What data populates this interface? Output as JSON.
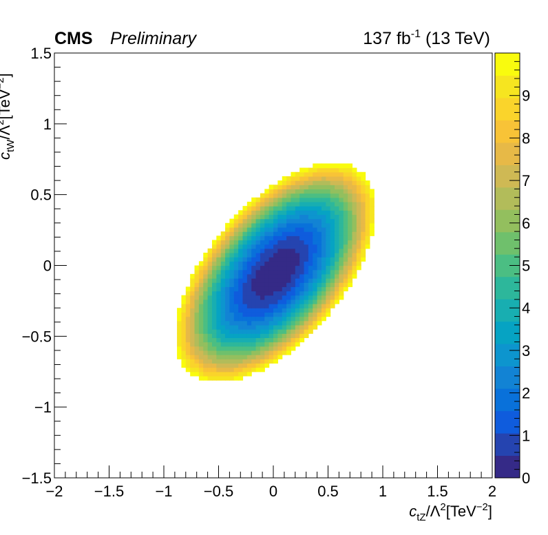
{
  "header": {
    "experiment": "CMS",
    "status": "Preliminary",
    "lumi": "137 fb",
    "lumi_exp": "-1",
    "energy": " (13 TeV)"
  },
  "chart_data": {
    "type": "heatmap",
    "xlabel": {
      "sym": "c",
      "sub": "tZ",
      "mid": "/Λ",
      "sup": "2",
      "unit": "[TeV",
      "unit_sup": "−2",
      "close": "]"
    },
    "ylabel": {
      "sym": "c",
      "sub": "tW",
      "mid": "/Λ",
      "sup": "2",
      "unit": "[TeV",
      "unit_sup": "−2",
      "close": "]"
    },
    "xlim": [
      -2,
      2
    ],
    "ylim": [
      -1.5,
      1.5
    ],
    "x_ticks": [
      -2,
      -1.5,
      -1,
      -0.5,
      0,
      0.5,
      1,
      1.5,
      2
    ],
    "y_ticks": [
      -1.5,
      -1,
      -0.5,
      0,
      0.5,
      1,
      1.5
    ],
    "tick_labels_x": [
      "−2",
      "−1.5",
      "−1",
      "−0.5",
      "0",
      "0.5",
      "1",
      "1.5",
      "2"
    ],
    "tick_labels_y": [
      "−1.5",
      "−1",
      "−0.5",
      "0",
      "0.5",
      "1",
      "1.5"
    ],
    "z_range": [
      0,
      10
    ],
    "z_ticks": [
      0,
      1,
      2,
      3,
      4,
      5,
      6,
      7,
      8,
      9
    ],
    "z_tick_labels": [
      "0",
      "1",
      "2",
      "3",
      "4",
      "5",
      "6",
      "7",
      "8",
      "9"
    ],
    "colormap": [
      "#352a87",
      "#2544b0",
      "#0f5cdd",
      "#0971da",
      "#1283d4",
      "#0d95ce",
      "#06a3c3",
      "#18aeb1",
      "#2db79b",
      "#4bbe83",
      "#6fc06c",
      "#93bf5e",
      "#b2bc5a",
      "#cfb954",
      "#e7b947",
      "#f8c337",
      "#fad42b",
      "#f6e520",
      "#f9fb0e"
    ],
    "ellipse": {
      "center": [
        0.02,
        -0.05
      ],
      "axis_direction_deg": 37,
      "semi_major_at_z10": 1.07,
      "semi_minor_at_z10": 0.54,
      "z_at_center": 0,
      "bin_width": 0.04,
      "bin_height": 0.03
    }
  }
}
